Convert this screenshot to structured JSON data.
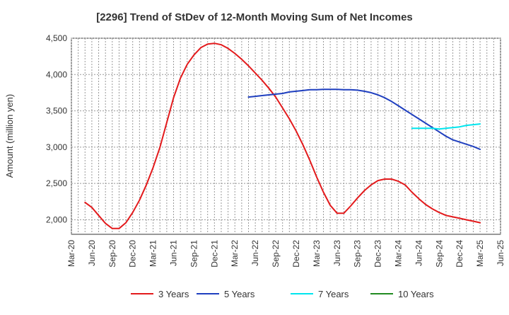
{
  "chart_data": {
    "type": "line",
    "title": "[2296]  Trend of StDev of 12-Month Moving Sum of Net Incomes",
    "xlabel": "",
    "ylabel": "Amount (million yen)",
    "ylim": [
      1800,
      4500
    ],
    "yticks": [
      2000,
      2500,
      3000,
      3500,
      4000,
      4500
    ],
    "ytick_labels": [
      "2,000",
      "2,500",
      "3,000",
      "3,500",
      "4,000",
      "4,500"
    ],
    "xticks": [
      "Mar-20",
      "Jun-20",
      "Sep-20",
      "Dec-20",
      "Mar-21",
      "Jun-21",
      "Sep-21",
      "Dec-21",
      "Mar-22",
      "Jun-22",
      "Sep-22",
      "Dec-22",
      "Mar-23",
      "Jun-23",
      "Sep-23",
      "Dec-23",
      "Mar-24",
      "Jun-24",
      "Sep-24",
      "Dec-24",
      "Mar-25",
      "Jun-25"
    ],
    "grid": true,
    "legend_position": "bottom",
    "series": [
      {
        "name": "3 Years",
        "color": "#e31a1c",
        "x": [
          "May-20",
          "Jun-20",
          "Jul-20",
          "Aug-20",
          "Sep-20",
          "Oct-20",
          "Nov-20",
          "Dec-20",
          "Jan-21",
          "Feb-21",
          "Mar-21",
          "Apr-21",
          "May-21",
          "Jun-21",
          "Jul-21",
          "Aug-21",
          "Sep-21",
          "Oct-21",
          "Nov-21",
          "Dec-21",
          "Jan-22",
          "Feb-22",
          "Mar-22",
          "Apr-22",
          "May-22",
          "Jun-22",
          "Jul-22",
          "Aug-22",
          "Sep-22",
          "Oct-22",
          "Nov-22",
          "Dec-22",
          "Jan-23",
          "Feb-23",
          "Mar-23",
          "Apr-23",
          "May-23",
          "Jun-23",
          "Jul-23",
          "Aug-23",
          "Sep-23",
          "Oct-23",
          "Nov-23",
          "Dec-23",
          "Jan-24",
          "Feb-24",
          "Mar-24",
          "Apr-24",
          "May-24",
          "Jun-24",
          "Jul-24",
          "Aug-24",
          "Sep-24",
          "Oct-24",
          "Nov-24",
          "Dec-24",
          "Jan-25",
          "Feb-25",
          "Mar-25"
        ],
        "values": [
          2240,
          2170,
          2060,
          1950,
          1880,
          1880,
          1960,
          2100,
          2270,
          2480,
          2720,
          3000,
          3340,
          3680,
          3950,
          4140,
          4270,
          4370,
          4420,
          4430,
          4410,
          4360,
          4290,
          4210,
          4120,
          4020,
          3920,
          3810,
          3690,
          3540,
          3390,
          3220,
          3030,
          2820,
          2590,
          2380,
          2200,
          2090,
          2090,
          2190,
          2300,
          2400,
          2480,
          2540,
          2560,
          2560,
          2530,
          2480,
          2380,
          2290,
          2210,
          2150,
          2100,
          2060,
          2040,
          2020,
          2000,
          1980,
          1960
        ]
      },
      {
        "name": "5 Years",
        "color": "#1f3fbf",
        "x": [
          "May-22",
          "Jun-22",
          "Jul-22",
          "Aug-22",
          "Sep-22",
          "Oct-22",
          "Nov-22",
          "Dec-22",
          "Jan-23",
          "Feb-23",
          "Mar-23",
          "Apr-23",
          "May-23",
          "Jun-23",
          "Jul-23",
          "Aug-23",
          "Sep-23",
          "Oct-23",
          "Nov-23",
          "Dec-23",
          "Jan-24",
          "Feb-24",
          "Mar-24",
          "Apr-24",
          "May-24",
          "Jun-24",
          "Jul-24",
          "Aug-24",
          "Sep-24",
          "Oct-24",
          "Nov-24",
          "Dec-24",
          "Jan-25",
          "Feb-25",
          "Mar-25"
        ],
        "values": [
          3690,
          3700,
          3710,
          3720,
          3730,
          3740,
          3760,
          3770,
          3780,
          3790,
          3790,
          3795,
          3795,
          3795,
          3790,
          3790,
          3785,
          3770,
          3750,
          3720,
          3680,
          3630,
          3570,
          3510,
          3450,
          3390,
          3330,
          3270,
          3210,
          3150,
          3100,
          3070,
          3040,
          3010,
          2970
        ]
      },
      {
        "name": "7 Years",
        "color": "#00e5ee",
        "x": [
          "May-24",
          "Jun-24",
          "Jul-24",
          "Aug-24",
          "Sep-24",
          "Oct-24",
          "Nov-24",
          "Dec-24",
          "Jan-25",
          "Feb-25",
          "Mar-25"
        ],
        "values": [
          3260,
          3260,
          3260,
          3260,
          3250,
          3260,
          3270,
          3280,
          3300,
          3310,
          3320
        ]
      },
      {
        "name": "10 Years",
        "color": "#228b22",
        "x": [],
        "values": []
      }
    ]
  }
}
